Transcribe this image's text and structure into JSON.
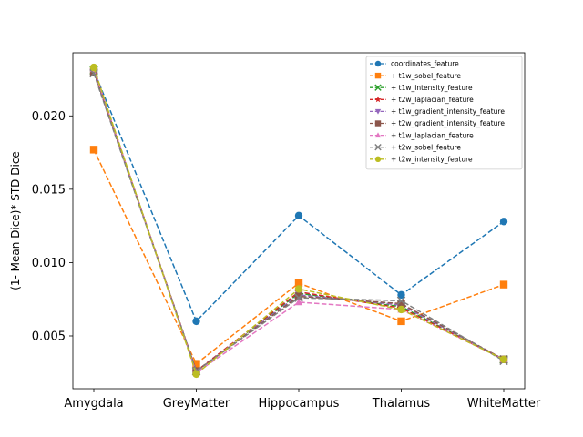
{
  "chart_data": {
    "type": "line",
    "title": "",
    "xlabel": "",
    "ylabel": "(1- Mean Dice)* STD Dice",
    "categories": [
      "Amygdala",
      "GreyMatter",
      "Hippocampus",
      "Thalamus",
      "WhiteMatter"
    ],
    "yticks": [
      "0.005",
      "0.010",
      "0.015",
      "0.020"
    ],
    "ylim": [
      0.0014,
      0.0243
    ],
    "grid": false,
    "legend_position": "top-right",
    "series": [
      {
        "name": "coordinates_feature",
        "values": [
          0.0231,
          0.006,
          0.0132,
          0.0078,
          0.0128
        ],
        "color": "#1f77b4",
        "marker": "circle"
      },
      {
        "name": "+ t1w_sobel_feature",
        "values": [
          0.0177,
          0.0031,
          0.0086,
          0.006,
          0.0085
        ],
        "color": "#ff7f0e",
        "marker": "square"
      },
      {
        "name": "+ t1w_intensity_feature",
        "values": [
          0.0231,
          0.0026,
          0.0079,
          0.007,
          0.0034
        ],
        "color": "#2ca02c",
        "marker": "x"
      },
      {
        "name": "+ t2w_laplacian_feature",
        "values": [
          0.0231,
          0.0026,
          0.008,
          0.0069,
          0.0034
        ],
        "color": "#d62728",
        "marker": "star"
      },
      {
        "name": "+ t1w_gradient_intensity_feature",
        "values": [
          0.023,
          0.0026,
          0.0078,
          0.0071,
          0.0034
        ],
        "color": "#9467bd",
        "marker": "triangle-down"
      },
      {
        "name": "+ t2w_gradient_intensity_feature",
        "values": [
          0.023,
          0.0026,
          0.0077,
          0.0072,
          0.0034
        ],
        "color": "#8c564b",
        "marker": "square"
      },
      {
        "name": "+ t1w_laplacian_feature",
        "values": [
          0.0232,
          0.0025,
          0.0073,
          0.0068,
          0.0034
        ],
        "color": "#e377c2",
        "marker": "triangle-up"
      },
      {
        "name": "+ t2w_sobel_feature",
        "values": [
          0.0229,
          0.0026,
          0.0076,
          0.0074,
          0.0033
        ],
        "color": "#7f7f7f",
        "marker": "x"
      },
      {
        "name": "+ t2w_intensity_feature",
        "values": [
          0.0233,
          0.0024,
          0.0082,
          0.0068,
          0.0034
        ],
        "color": "#bcbd22",
        "marker": "circle"
      }
    ]
  }
}
